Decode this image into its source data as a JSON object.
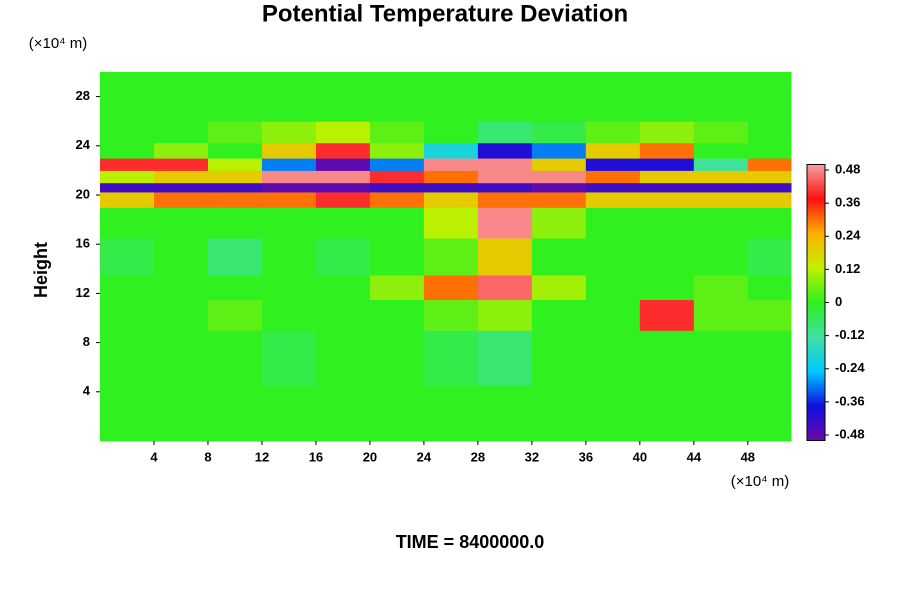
{
  "chart_data": {
    "type": "heatmap",
    "title": "Potential Temperature Deviation",
    "y_label": "Height",
    "x_unit": "(×10⁴ m)",
    "y_unit": "(×10⁴ m)",
    "time_label": "TIME = 8400000.0",
    "xlim": [
      0,
      51.2
    ],
    "ylim": [
      0,
      30
    ],
    "xticks": [
      4,
      8,
      12,
      16,
      20,
      24,
      28,
      32,
      36,
      40,
      44,
      48
    ],
    "yticks": [
      4,
      8,
      12,
      16,
      20,
      24,
      28
    ],
    "clim": [
      -0.5,
      0.5
    ],
    "cticks": [
      -0.48,
      -0.36,
      -0.24,
      -0.12,
      0,
      0.12,
      0.24,
      0.36,
      0.48
    ],
    "colormap": [
      "#6a0aa8",
      "#1010e0",
      "#00c8ff",
      "#40e0a0",
      "#30f020",
      "#c0f000",
      "#ffb000",
      "#ff1010",
      "#f8a0a0"
    ],
    "x": [
      2,
      6,
      10,
      14,
      18,
      22,
      26,
      30,
      34,
      38,
      42,
      46,
      50
    ],
    "y": [
      2,
      7,
      11,
      12,
      15,
      18,
      20,
      20.5,
      21.5,
      22.5,
      23.5,
      25,
      27,
      29
    ],
    "z": [
      [
        0,
        0,
        0,
        0,
        0,
        0,
        0,
        0,
        0,
        0,
        0,
        0,
        0
      ],
      [
        0,
        0,
        0,
        -0.04,
        0,
        0,
        -0.04,
        -0.08,
        0,
        0,
        0,
        0,
        0
      ],
      [
        0,
        0,
        0.04,
        0,
        0,
        0,
        0.04,
        0.08,
        0,
        0,
        0.4,
        0.04,
        0.04
      ],
      [
        0,
        0,
        0,
        0,
        0,
        0.08,
        0.3,
        0.45,
        0.1,
        0,
        0,
        0.04,
        0
      ],
      [
        -0.04,
        0,
        -0.08,
        0,
        -0.04,
        0,
        0.04,
        0.2,
        0,
        0,
        0,
        0,
        -0.04
      ],
      [
        0,
        0,
        0,
        0,
        0,
        0,
        0.12,
        0.48,
        0.08,
        0,
        0,
        0,
        0
      ],
      [
        0.2,
        0.3,
        0.3,
        0.3,
        0.4,
        0.3,
        0.2,
        0.3,
        0.3,
        0.2,
        0.2,
        0.2,
        0.2
      ],
      [
        -0.44,
        -0.44,
        -0.44,
        -0.48,
        -0.48,
        -0.44,
        -0.44,
        -0.44,
        -0.48,
        -0.44,
        -0.44,
        -0.44,
        -0.44
      ],
      [
        0.12,
        0.2,
        0.2,
        0.48,
        0.48,
        0.4,
        0.3,
        0.48,
        0.48,
        0.3,
        0.2,
        0.2,
        0.2
      ],
      [
        0.4,
        0.4,
        0.12,
        -0.3,
        -0.48,
        -0.3,
        0.48,
        0.48,
        0.2,
        -0.4,
        -0.4,
        -0.12,
        0.3
      ],
      [
        0,
        0.08,
        0,
        0.2,
        0.4,
        0.08,
        -0.2,
        -0.4,
        -0.3,
        0.2,
        0.3,
        0,
        0
      ],
      [
        0,
        0,
        0.04,
        0.08,
        0.12,
        0.04,
        0,
        -0.08,
        -0.04,
        0.04,
        0.08,
        0.04,
        0
      ],
      [
        0,
        0,
        0,
        0,
        0,
        0,
        0,
        0,
        0,
        0,
        0,
        0,
        0
      ],
      [
        0,
        0,
        0,
        0,
        0,
        0,
        0,
        0,
        0,
        0,
        0,
        0,
        0
      ]
    ]
  }
}
